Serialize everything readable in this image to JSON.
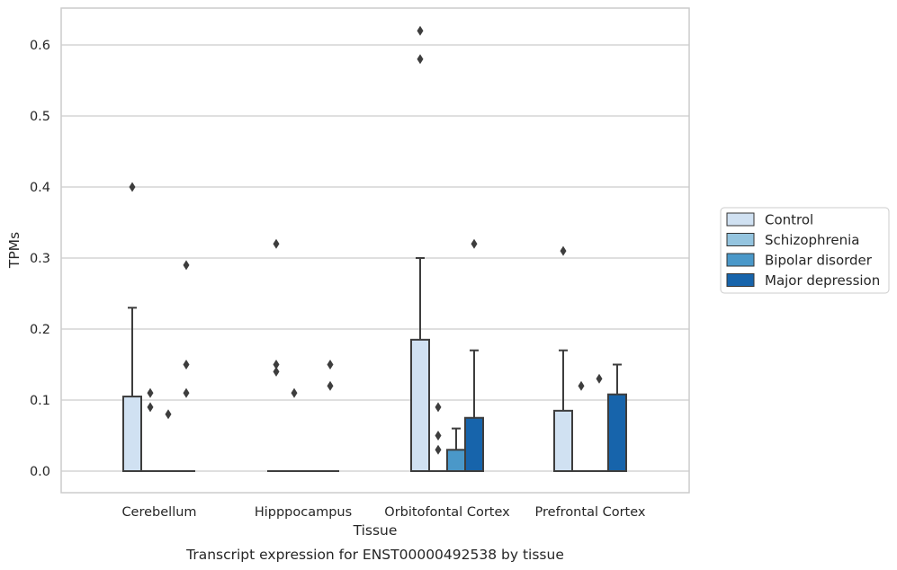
{
  "chart_data": {
    "type": "box",
    "xlabel": "Tissue",
    "ylabel": "TPMs",
    "caption": "Transcript expression for ENST00000492538 by tissue",
    "ylim": [
      -0.03,
      0.655
    ],
    "yticks": [
      "0.0",
      "0.1",
      "0.2",
      "0.3",
      "0.4",
      "0.5",
      "0.6"
    ],
    "grid": "horizontal",
    "legend_position": "right",
    "categories": [
      "Cerebellum",
      "Hipppocampus",
      "Orbitofontal Cortex",
      "Prefrontal Cortex"
    ],
    "series": [
      {
        "name": "Control",
        "color": "#d0e1f2",
        "boxes": [
          {
            "q1": 0.0,
            "median": 0.0,
            "q3": 0.105,
            "whisker_low": 0.0,
            "whisker_high": 0.23,
            "outliers": [
              0.4
            ]
          },
          {
            "q1": 0.0,
            "median": 0.0,
            "q3": 0.0,
            "whisker_low": 0.0,
            "whisker_high": 0.0,
            "outliers": [
              0.32,
              0.15,
              0.14
            ]
          },
          {
            "q1": 0.0,
            "median": 0.0,
            "q3": 0.185,
            "whisker_low": 0.0,
            "whisker_high": 0.3,
            "outliers": [
              0.62,
              0.58
            ]
          },
          {
            "q1": 0.0,
            "median": 0.0,
            "q3": 0.085,
            "whisker_low": 0.0,
            "whisker_high": 0.17,
            "outliers": [
              0.31
            ]
          }
        ]
      },
      {
        "name": "Schizophrenia",
        "color": "#94c4df",
        "boxes": [
          {
            "q1": 0.0,
            "median": 0.0,
            "q3": 0.0,
            "whisker_low": 0.0,
            "whisker_high": 0.0,
            "outliers": [
              0.11,
              0.09
            ]
          },
          {
            "q1": 0.0,
            "median": 0.0,
            "q3": 0.0,
            "whisker_low": 0.0,
            "whisker_high": 0.0,
            "outliers": [
              0.11
            ]
          },
          {
            "q1": 0.0,
            "median": 0.0,
            "q3": 0.0,
            "whisker_low": 0.0,
            "whisker_high": 0.0,
            "outliers": [
              0.09,
              0.05,
              0.03
            ]
          },
          {
            "q1": 0.0,
            "median": 0.0,
            "q3": 0.0,
            "whisker_low": 0.0,
            "whisker_high": 0.0,
            "outliers": [
              0.12
            ]
          }
        ]
      },
      {
        "name": "Bipolar disorder",
        "color": "#4a98c9",
        "boxes": [
          {
            "q1": 0.0,
            "median": 0.0,
            "q3": 0.0,
            "whisker_low": 0.0,
            "whisker_high": 0.0,
            "outliers": [
              0.08
            ]
          },
          {
            "q1": 0.0,
            "median": 0.0,
            "q3": 0.0,
            "whisker_low": 0.0,
            "whisker_high": 0.0,
            "outliers": []
          },
          {
            "q1": 0.0,
            "median": 0.0,
            "q3": 0.03,
            "whisker_low": 0.0,
            "whisker_high": 0.06,
            "outliers": []
          },
          {
            "q1": 0.0,
            "median": 0.0,
            "q3": 0.0,
            "whisker_low": 0.0,
            "whisker_high": 0.0,
            "outliers": [
              0.13
            ]
          }
        ]
      },
      {
        "name": "Major depression",
        "color": "#1764ab",
        "boxes": [
          {
            "q1": 0.0,
            "median": 0.0,
            "q3": 0.0,
            "whisker_low": 0.0,
            "whisker_high": 0.0,
            "outliers": [
              0.29,
              0.15,
              0.11
            ]
          },
          {
            "q1": 0.0,
            "median": 0.0,
            "q3": 0.0,
            "whisker_low": 0.0,
            "whisker_high": 0.0,
            "outliers": [
              0.15,
              0.12
            ]
          },
          {
            "q1": 0.0,
            "median": 0.0,
            "q3": 0.075,
            "whisker_low": 0.0,
            "whisker_high": 0.17,
            "outliers": [
              0.32
            ]
          },
          {
            "q1": 0.0,
            "median": 0.0,
            "q3": 0.108,
            "whisker_low": 0.0,
            "whisker_high": 0.15,
            "outliers": []
          }
        ]
      }
    ]
  }
}
